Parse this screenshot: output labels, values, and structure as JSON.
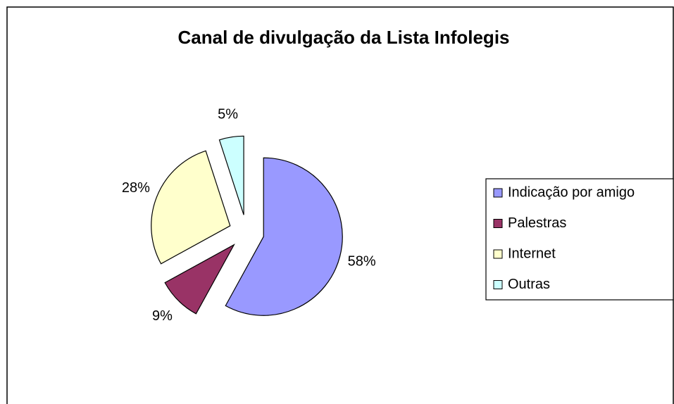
{
  "chart_data": {
    "type": "pie",
    "title": "Canal de divulgação da Lista Infolegis",
    "categories": [
      "Indicação por amigo",
      "Palestras",
      "Internet",
      "Outras"
    ],
    "values": [
      58,
      9,
      28,
      5
    ],
    "value_labels": [
      "58%",
      "9%",
      "28%",
      "5%"
    ],
    "colors": [
      "#9999ff",
      "#993366",
      "#ffffcc",
      "#ccffff"
    ],
    "legend": "right"
  }
}
